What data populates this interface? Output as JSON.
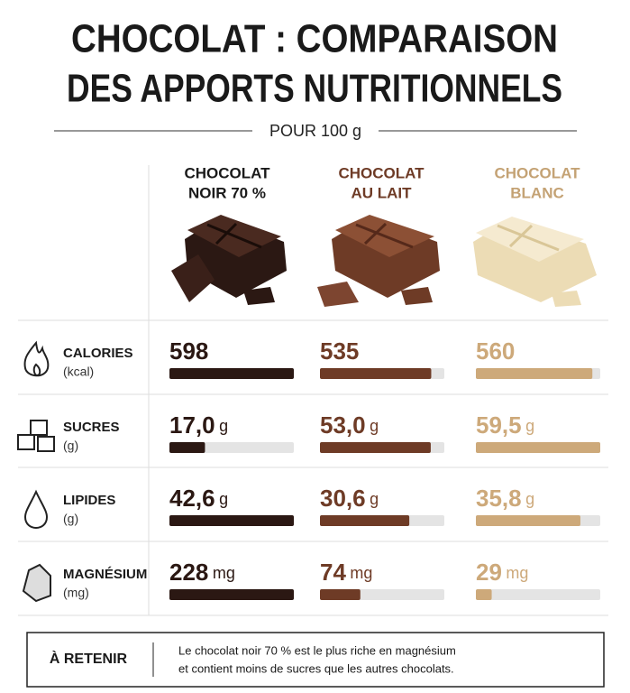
{
  "header": {
    "title_lines": [
      "CHOCOLAT : COMPARAISON",
      "DES APPORTS NUTRITIONNELS"
    ],
    "subtitle": "POUR 100 g"
  },
  "columns": [
    {
      "name_lines": [
        "CHOCOLAT",
        "NOIR 70 %"
      ],
      "color": "#2b1813",
      "header_color": "#1a1a1a"
    },
    {
      "name_lines": [
        "CHOCOLAT",
        "AU LAIT"
      ],
      "color": "#6e3b26",
      "header_color": "#6e3b26"
    },
    {
      "name_lines": [
        "CHOCOLAT",
        "BLANC"
      ],
      "color": "#cda97a",
      "header_color": "#c4a274"
    }
  ],
  "rows": [
    {
      "label": "CALORIES",
      "unit_label": "(kcal)",
      "values": [
        598,
        535,
        560
      ]
    },
    {
      "label": "SUCRES",
      "unit_label": "(g)",
      "values": [
        17.0,
        53.0,
        59.5
      ],
      "value_labels": [
        "17,0",
        "53,0",
        "59,5"
      ],
      "value_unit": "g"
    },
    {
      "label": "LIPIDES",
      "unit_label": "(g)",
      "values": [
        42.6,
        30.6,
        35.8
      ],
      "value_labels": [
        "42,6",
        "30,6",
        "35,8"
      ],
      "value_unit": "g"
    },
    {
      "label": "MAGNÉSIUM",
      "unit_label": "(mg)",
      "values": [
        228,
        74,
        29
      ],
      "value_unit": "mg"
    }
  ],
  "note": {
    "title": "À RETENIR",
    "lines": [
      "Le chocolat noir 70 % est le plus riche en magnésium",
      "et contient moins de sucres que les autres chocolats."
    ]
  }
}
